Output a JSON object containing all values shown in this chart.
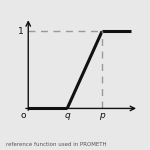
{
  "q_val": 0.38,
  "p_val": 0.72,
  "y_max": 1.0,
  "line_color": "#111111",
  "dashed_color": "#999999",
  "background_color": "#e8e8e8",
  "line_width": 2.2,
  "dashed_lw": 1.0,
  "labels": {
    "o": "o",
    "q": "q",
    "p": "p",
    "one": "1"
  },
  "caption": "reference function used in PROMETH",
  "fig_width": 1.5,
  "fig_height": 1.5,
  "dpi": 100
}
